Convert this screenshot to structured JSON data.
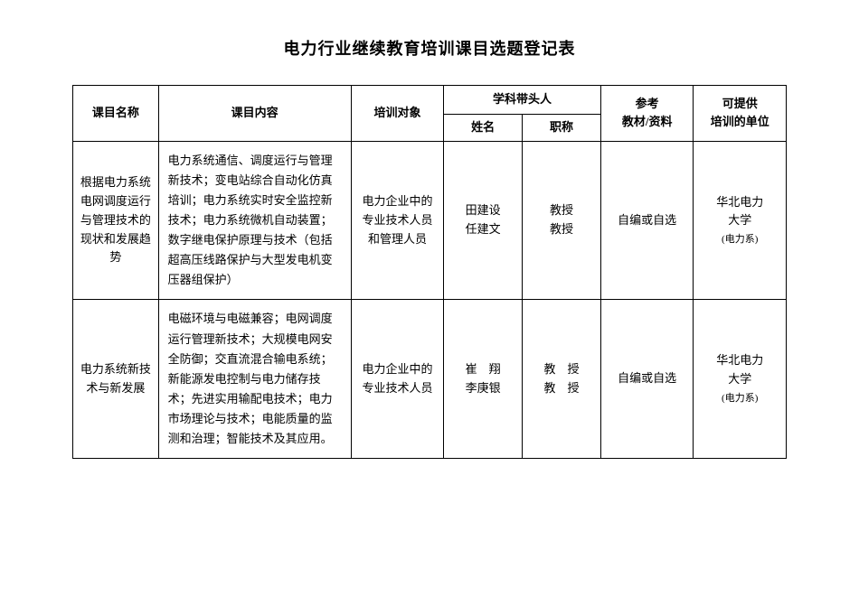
{
  "title": "电力行业继续教育培训课目选题登记表",
  "headers": {
    "courseName": "课目名称",
    "courseContent": "课目内容",
    "trainingTarget": "培训对象",
    "leaderGroup": "学科带头人",
    "leaderName": "姓名",
    "leaderTitle": "职称",
    "materials": "参考",
    "materialsSub": "教材/资料",
    "provider": "可提供",
    "providerSub": "培训的单位"
  },
  "rows": [
    {
      "name": "根据电力系统电网调度运行与管理技术的现状和发展趋势",
      "content": "电力系统通信、调度运行与管理新技术；变电站综合自动化仿真培训；电力系统实时安全监控新技术；电力系统微机自动装置；数字继电保护原理与技术（包括超高压线路保护与大型发电机变压器组保护）",
      "target": "电力企业中的专业技术人员和管理人员",
      "leaderName1": "田建设",
      "leaderName2": "任建文",
      "leaderTitle1": "教授",
      "leaderTitle2": "教授",
      "materials": "自编或自选",
      "provider": "华北电力",
      "providerLine2": "大学",
      "providerNote": "(电力系)"
    },
    {
      "name": "电力系统新技术与新发展",
      "content": "电磁环境与电磁兼容；电网调度运行管理新技术；大规模电网安全防御；交直流混合输电系统；新能源发电控制与电力储存技术；先进实用输配电技术；电力市场理论与技术；电能质量的监测和治理；智能技术及其应用。",
      "target": "电力企业中的专业技术人员",
      "leaderName1": "崔　翔",
      "leaderName2": "李庚银",
      "leaderTitle1": "教　授",
      "leaderTitle2": "教　授",
      "materials": "自编或自选",
      "provider": "华北电力",
      "providerLine2": "大学",
      "providerNote": "(电力系)"
    }
  ]
}
